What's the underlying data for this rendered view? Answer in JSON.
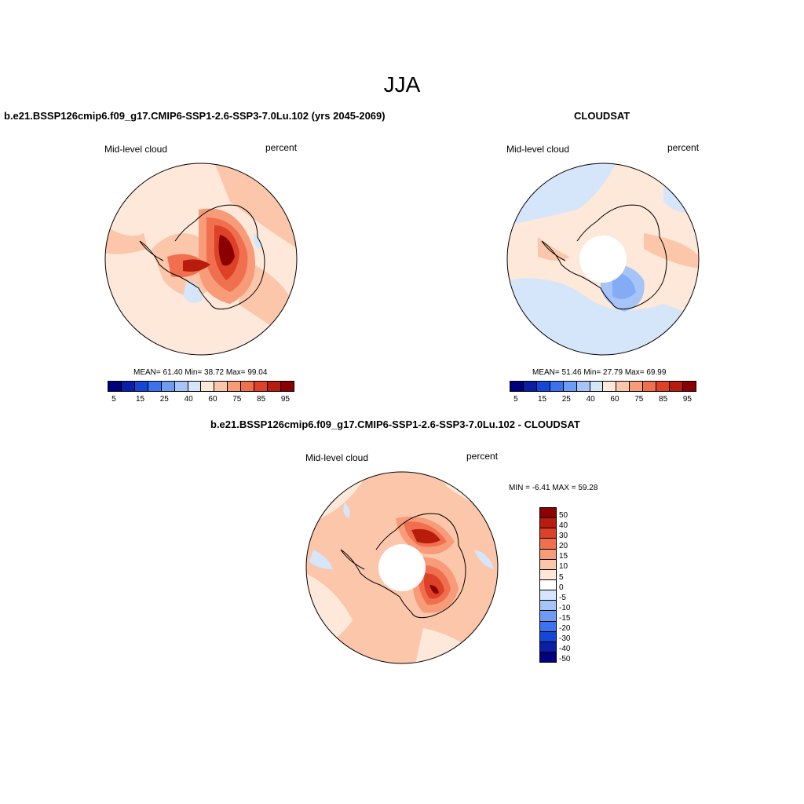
{
  "title": "JJA",
  "panels": [
    {
      "id": "model",
      "title": "b.e21.BSSP126cmip6.f09_g17.CMIP6-SSP1-2.6-SSP3-7.0Lu.102 (yrs 2045-2069)",
      "left_label": "Mid-level cloud",
      "right_label": "percent",
      "stats": "MEAN=  61.40  Min=  38.72  Max=  99.04"
    },
    {
      "id": "obs",
      "title": "CLOUDSAT",
      "left_label": "Mid-level cloud",
      "right_label": "percent",
      "stats": "MEAN=  51.46  Min=  27.79  Max=  69.99"
    },
    {
      "id": "diff",
      "title": "b.e21.BSSP126cmip6.f09_g17.CMIP6-SSP1-2.6-SSP3-7.0Lu.102 - CLOUDSAT",
      "left_label": "Mid-level cloud",
      "right_label": "percent",
      "stats": "MIN =  -6.41 MAX =  59.28"
    }
  ],
  "chart_data": [
    {
      "type": "heatmap",
      "map": "south-polar-stereographic",
      "variable": "Mid-level cloud",
      "units": "percent",
      "mean": 61.4,
      "min": 38.72,
      "max": 99.04,
      "colorbar_ticks": [
        "5",
        "15",
        "25",
        "40",
        "60",
        "75",
        "85",
        "95"
      ],
      "colorbar_colors": [
        "#00007f",
        "#0a1fa6",
        "#1646d6",
        "#3a72f0",
        "#6e9cf3",
        "#a6c4f7",
        "#d5e6fb",
        "#fde8da",
        "#fbc6a9",
        "#f79b78",
        "#f06f4f",
        "#dd4127",
        "#b71c0c",
        "#8b0000"
      ]
    },
    {
      "type": "heatmap",
      "map": "south-polar-stereographic",
      "variable": "Mid-level cloud",
      "units": "percent",
      "mean": 51.46,
      "min": 27.79,
      "max": 69.99,
      "colorbar_ticks": [
        "5",
        "15",
        "25",
        "40",
        "60",
        "75",
        "85",
        "95"
      ],
      "colorbar_colors": [
        "#00007f",
        "#0a1fa6",
        "#1646d6",
        "#3a72f0",
        "#6e9cf3",
        "#a6c4f7",
        "#d5e6fb",
        "#fde8da",
        "#fbc6a9",
        "#f79b78",
        "#f06f4f",
        "#dd4127",
        "#b71c0c",
        "#8b0000"
      ]
    },
    {
      "type": "heatmap",
      "map": "south-polar-stereographic",
      "variable": "Mid-level cloud",
      "units": "percent",
      "min": -6.41,
      "max": 59.28,
      "colorbar_ticks": [
        "50",
        "40",
        "30",
        "20",
        "15",
        "10",
        "5",
        "0",
        "-5",
        "-10",
        "-15",
        "-20",
        "-30",
        "-40",
        "-50"
      ],
      "colorbar_colors": [
        "#8b0000",
        "#b71c0c",
        "#dd4127",
        "#f06f4f",
        "#f79b78",
        "#fbc6a9",
        "#fde8da",
        "#ffffff",
        "#d5e6fb",
        "#a6c4f7",
        "#6e9cf3",
        "#3a72f0",
        "#1646d6",
        "#0a1fa6",
        "#00007f"
      ]
    }
  ]
}
